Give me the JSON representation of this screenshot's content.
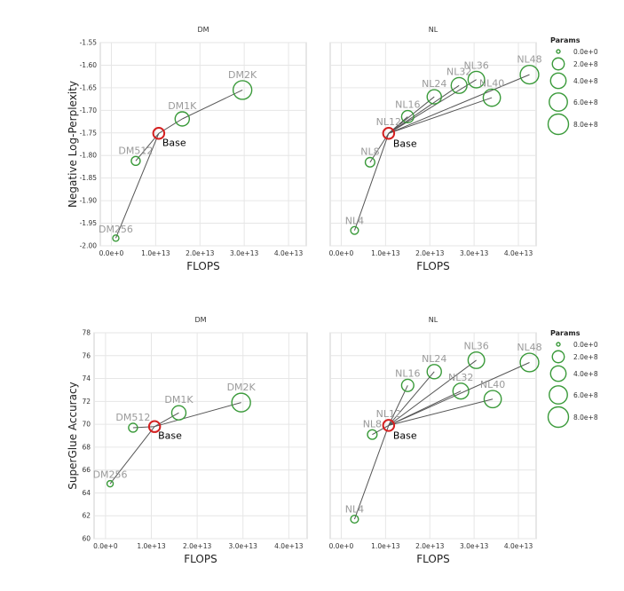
{
  "colors": {
    "point": "#3a9a3a",
    "base": "#d42020",
    "line": "#555555",
    "grid": "#e6e6e6",
    "axis": "#cfcfcf"
  },
  "legend": {
    "title": "Params",
    "entries": [
      {
        "label": "0.0e+0",
        "value": 0
      },
      {
        "label": "2.0e+8",
        "value": 200000000
      },
      {
        "label": "4.0e+8",
        "value": 400000000
      },
      {
        "label": "6.0e+8",
        "value": 600000000
      },
      {
        "label": "8.0e+8",
        "value": 800000000
      }
    ]
  },
  "chart_data": [
    {
      "type": "scatter",
      "title": "DM",
      "xlabel": "FLOPS",
      "ylabel": "Negative Log-Perplexity",
      "xlim": [
        -2500000000000.0,
        44000000000000.0
      ],
      "ylim": [
        -2.0,
        -1.55
      ],
      "xticks": [
        0,
        10000000000000.0,
        20000000000000.0,
        30000000000000.0,
        40000000000000.0
      ],
      "xtick_labels": [
        "0.0e+0",
        "1.0e+13",
        "2.0e+13",
        "3.0e+13",
        "4.0e+13"
      ],
      "yticks": [
        -2.0,
        -1.95,
        -1.9,
        -1.85,
        -1.8,
        -1.75,
        -1.7,
        -1.65,
        -1.6,
        -1.55
      ],
      "ytick_labels": [
        "-2.00",
        "-1.95",
        "-1.90",
        "-1.85",
        "-1.80",
        "-1.75",
        "-1.70",
        "-1.65",
        "-1.60",
        "-1.55"
      ],
      "grid": true,
      "base": "Base",
      "points": [
        {
          "label": "DM256",
          "x": 1000000000000.0,
          "y": -1.983,
          "params": 20000000.0
        },
        {
          "label": "DM512",
          "x": 5500000000000.0,
          "y": -1.812,
          "params": 80000000.0
        },
        {
          "label": "Base",
          "x": 10700000000000.0,
          "y": -1.751,
          "params": 160000000.0
        },
        {
          "label": "DM1K",
          "x": 16000000000000.0,
          "y": -1.719,
          "params": 320000000.0
        },
        {
          "label": "DM2K",
          "x": 29600000000000.0,
          "y": -1.655,
          "params": 640000000.0
        }
      ],
      "lines": [
        [
          "DM256",
          "Base"
        ],
        [
          "DM512",
          "Base"
        ],
        [
          "Base",
          "DM1K"
        ],
        [
          "DM1K",
          "DM2K"
        ]
      ]
    },
    {
      "type": "scatter",
      "title": "NL",
      "xlabel": "FLOPS",
      "ylabel": "",
      "xlim": [
        -2500000000000.0,
        44000000000000.0
      ],
      "ylim": [
        -2.0,
        -1.55
      ],
      "xticks": [
        0,
        10000000000000.0,
        20000000000000.0,
        30000000000000.0,
        40000000000000.0
      ],
      "xtick_labels": [
        "0.0e+0",
        "1.0e+13",
        "2.0e+13",
        "3.0e+13",
        "4.0e+13"
      ],
      "yticks": [],
      "ytick_labels": [],
      "grid": true,
      "base": "NL12",
      "base_tag": "Base",
      "points": [
        {
          "label": "NL4",
          "x": 3000000000000.0,
          "y": -1.966,
          "params": 50000000.0
        },
        {
          "label": "NL8",
          "x": 6500000000000.0,
          "y": -1.815,
          "params": 100000000.0
        },
        {
          "label": "NL12",
          "x": 10700000000000.0,
          "y": -1.751,
          "params": 160000000.0
        },
        {
          "label": "NL16",
          "x": 15000000000000.0,
          "y": -1.714,
          "params": 210000000.0
        },
        {
          "label": "NL24",
          "x": 21000000000000.0,
          "y": -1.67,
          "params": 320000000.0
        },
        {
          "label": "NL32",
          "x": 26600000000000.0,
          "y": -1.645,
          "params": 420000000.0
        },
        {
          "label": "NL36",
          "x": 30500000000000.0,
          "y": -1.632,
          "params": 470000000.0
        },
        {
          "label": "NL40",
          "x": 34000000000000.0,
          "y": -1.672,
          "params": 520000000.0
        },
        {
          "label": "NL48",
          "x": 42500000000000.0,
          "y": -1.621,
          "params": 630000000.0
        }
      ],
      "lines": [
        [
          "NL4",
          "NL12"
        ],
        [
          "NL8",
          "NL12"
        ],
        [
          "NL12",
          "NL16"
        ],
        [
          "NL12",
          "NL24"
        ],
        [
          "NL12",
          "NL32"
        ],
        [
          "NL12",
          "NL36"
        ],
        [
          "NL12",
          "NL40"
        ],
        [
          "NL12",
          "NL48"
        ]
      ]
    },
    {
      "type": "scatter",
      "title": "DM",
      "xlabel": "FLOPS",
      "ylabel": "SuperGlue Accuracy",
      "xlim": [
        -2500000000000.0,
        44000000000000.0
      ],
      "ylim": [
        60,
        78
      ],
      "xticks": [
        0,
        10000000000000.0,
        20000000000000.0,
        30000000000000.0,
        40000000000000.0
      ],
      "xtick_labels": [
        "0.0e+0",
        "1.0e+13",
        "2.0e+13",
        "3.0e+13",
        "4.0e+13"
      ],
      "yticks": [
        60,
        62,
        64,
        66,
        68,
        70,
        72,
        74,
        76,
        78
      ],
      "ytick_labels": [
        "60",
        "62",
        "64",
        "66",
        "68",
        "70",
        "72",
        "74",
        "76",
        "78"
      ],
      "grid": true,
      "base": "Base",
      "points": [
        {
          "label": "DM256",
          "x": 1000000000000.0,
          "y": 64.8,
          "params": 20000000.0
        },
        {
          "label": "DM512",
          "x": 6000000000000.0,
          "y": 69.7,
          "params": 80000000.0
        },
        {
          "label": "Base",
          "x": 10700000000000.0,
          "y": 69.8,
          "params": 160000000.0
        },
        {
          "label": "DM1K",
          "x": 16000000000000.0,
          "y": 71.0,
          "params": 320000000.0
        },
        {
          "label": "DM2K",
          "x": 29600000000000.0,
          "y": 71.9,
          "params": 640000000.0
        }
      ],
      "lines": [
        [
          "DM256",
          "Base"
        ],
        [
          "DM512",
          "Base"
        ],
        [
          "Base",
          "DM1K"
        ],
        [
          "Base",
          "DM2K"
        ]
      ]
    },
    {
      "type": "scatter",
      "title": "NL",
      "xlabel": "FLOPS",
      "ylabel": "",
      "xlim": [
        -2500000000000.0,
        44000000000000.0
      ],
      "ylim": [
        60,
        78
      ],
      "xticks": [
        0,
        10000000000000.0,
        20000000000000.0,
        30000000000000.0,
        40000000000000.0
      ],
      "xtick_labels": [
        "0.0e+0",
        "1.0e+13",
        "2.0e+13",
        "3.0e+13",
        "4.0e+13"
      ],
      "yticks": [],
      "ytick_labels": [],
      "grid": true,
      "base": "NL12",
      "base_tag": "Base",
      "points": [
        {
          "label": "NL4",
          "x": 3000000000000.0,
          "y": 61.7,
          "params": 50000000.0
        },
        {
          "label": "NL8",
          "x": 7000000000000.0,
          "y": 69.1,
          "params": 100000000.0
        },
        {
          "label": "NL12",
          "x": 10700000000000.0,
          "y": 69.9,
          "params": 160000000.0
        },
        {
          "label": "NL16",
          "x": 15000000000000.0,
          "y": 73.4,
          "params": 210000000.0
        },
        {
          "label": "NL24",
          "x": 21000000000000.0,
          "y": 74.6,
          "params": 320000000.0
        },
        {
          "label": "NL32",
          "x": 27000000000000.0,
          "y": 72.9,
          "params": 420000000.0
        },
        {
          "label": "NL36",
          "x": 30500000000000.0,
          "y": 75.6,
          "params": 470000000.0
        },
        {
          "label": "NL40",
          "x": 34200000000000.0,
          "y": 72.2,
          "params": 520000000.0
        },
        {
          "label": "NL48",
          "x": 42500000000000.0,
          "y": 75.4,
          "params": 630000000.0
        }
      ],
      "lines": [
        [
          "NL4",
          "NL12"
        ],
        [
          "NL8",
          "NL12"
        ],
        [
          "NL12",
          "NL16"
        ],
        [
          "NL12",
          "NL24"
        ],
        [
          "NL12",
          "NL32"
        ],
        [
          "NL12",
          "NL36"
        ],
        [
          "NL12",
          "NL40"
        ],
        [
          "NL12",
          "NL48"
        ]
      ]
    }
  ]
}
